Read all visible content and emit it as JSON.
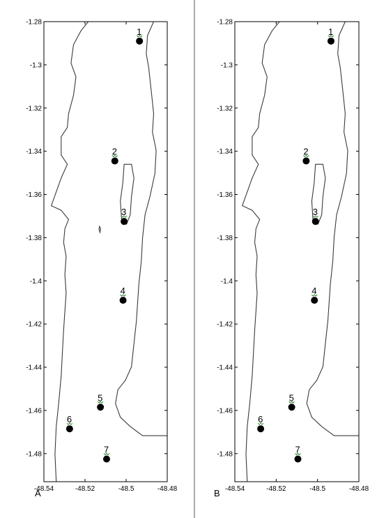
{
  "figure": {
    "panels": [
      {
        "id": "A",
        "letter": "A"
      },
      {
        "id": "B",
        "letter": "B"
      }
    ],
    "axes": {
      "x_ticks": [
        "-48.54",
        "-48.52",
        "-48.5",
        "-48.48"
      ],
      "x_tick_values": [
        -48.54,
        -48.52,
        -48.5,
        -48.48
      ],
      "y_ticks": [
        "-1.28",
        "-1.3",
        "-1.32",
        "-1.34",
        "-1.36",
        "-1.38",
        "-1.4",
        "-1.42",
        "-1.44",
        "-1.46",
        "-1.48"
      ],
      "y_tick_values": [
        -1.28,
        -1.3,
        -1.32,
        -1.34,
        -1.36,
        -1.38,
        -1.4,
        -1.42,
        -1.44,
        -1.46,
        -1.48
      ],
      "xlim": [
        -48.54,
        -48.48
      ],
      "ylim": [
        -1.493,
        -1.28
      ]
    },
    "stations": [
      {
        "label": "1",
        "lon": -48.4935,
        "lat": -1.289
      },
      {
        "label": "2",
        "lon": -48.5055,
        "lat": -1.3445
      },
      {
        "label": "3",
        "lon": -48.501,
        "lat": -1.3725
      },
      {
        "label": "4",
        "lon": -48.5015,
        "lat": -1.409
      },
      {
        "label": "5",
        "lon": -48.5125,
        "lat": -1.4585
      },
      {
        "label": "6",
        "lon": -48.5275,
        "lat": -1.4685
      },
      {
        "label": "7",
        "lon": -48.5095,
        "lat": -1.4825
      }
    ],
    "colors": {
      "marker": "#000000",
      "label_tick": "#2e8b2e",
      "coast": "#3a3a3a"
    }
  }
}
